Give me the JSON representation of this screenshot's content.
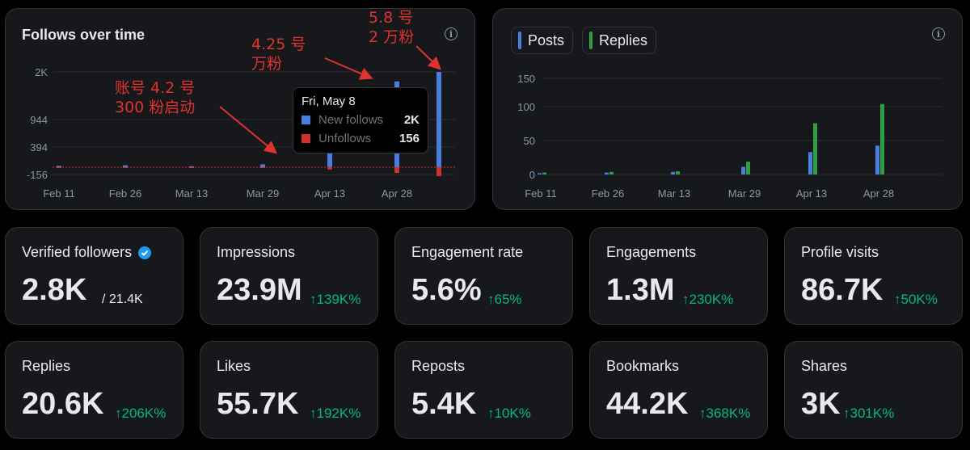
{
  "follows_chart": {
    "title": "Follows over time",
    "y_ticks": [
      "2K",
      "944",
      "394",
      "-156"
    ],
    "x_ticks": [
      "Feb 11",
      "Feb 26",
      "Mar 13",
      "Mar 29",
      "Apr 13",
      "Apr 28"
    ],
    "tooltip": {
      "date": "Fri, May 8",
      "rows": [
        {
          "label": "New follows",
          "value": "2K",
          "color": "#4a7de0"
        },
        {
          "label": "Unfollows",
          "value": "156",
          "color": "#d0312d"
        }
      ]
    },
    "annotations": {
      "a1_line1": "账号 4.2 号",
      "a1_line2": "300 粉启动",
      "a2_line1": "4.25 号",
      "a2_line2": "万粉",
      "a3_line1": "5.8 号",
      "a3_line2": "2 万粉"
    }
  },
  "posts_chart": {
    "legend": [
      {
        "label": "Posts",
        "color": "#4a7de0"
      },
      {
        "label": "Replies",
        "color": "#2ea043"
      }
    ],
    "y_ticks": [
      "150",
      "100",
      "50",
      "0"
    ],
    "x_ticks": [
      "Feb 11",
      "Feb 26",
      "Mar 13",
      "Mar 29",
      "Apr 13",
      "Apr 28"
    ]
  },
  "chart_data": [
    {
      "type": "bar",
      "title": "Follows over time",
      "categories": [
        "Feb 11",
        "Feb 26",
        "Mar 13",
        "Mar 29",
        "Apr 13",
        "Apr 28",
        "May 8"
      ],
      "series": [
        {
          "name": "New follows",
          "values": [
            30,
            40,
            20,
            60,
            470,
            1800,
            2000
          ]
        },
        {
          "name": "Unfollows",
          "values": [
            5,
            5,
            5,
            10,
            40,
            100,
            156
          ]
        }
      ],
      "ylim": [
        -156,
        2000
      ]
    },
    {
      "type": "bar",
      "categories": [
        "Feb 11",
        "Feb 26",
        "Mar 13",
        "Mar 29",
        "Apr 13",
        "Apr 28"
      ],
      "series": [
        {
          "name": "Posts",
          "values": [
            2,
            3,
            4,
            12,
            35,
            45
          ]
        },
        {
          "name": "Replies",
          "values": [
            3,
            4,
            5,
            20,
            80,
            110
          ]
        }
      ],
      "ylim": [
        0,
        150
      ]
    }
  ],
  "stats": [
    {
      "label": "Verified followers",
      "value": "2.8K",
      "suffix": "/ 21.4K",
      "change": ""
    },
    {
      "label": "Impressions",
      "value": "23.9M",
      "suffix": "",
      "change": "↑139K%"
    },
    {
      "label": "Engagement rate",
      "value": "5.6%",
      "suffix": "",
      "change": "↑65%"
    },
    {
      "label": "Engagements",
      "value": "1.3M",
      "suffix": "",
      "change": "↑230K%"
    },
    {
      "label": "Profile visits",
      "value": "86.7K",
      "suffix": "",
      "change": "↑50K%"
    },
    {
      "label": "Replies",
      "value": "20.6K",
      "suffix": "",
      "change": "↑206K%"
    },
    {
      "label": "Likes",
      "value": "55.7K",
      "suffix": "",
      "change": "↑192K%"
    },
    {
      "label": "Reposts",
      "value": "5.4K",
      "suffix": "",
      "change": "↑10K%"
    },
    {
      "label": "Bookmarks",
      "value": "44.2K",
      "suffix": "",
      "change": "↑368K%"
    },
    {
      "label": "Shares",
      "value": "3K",
      "suffix": "",
      "change": "↑301K%"
    }
  ]
}
